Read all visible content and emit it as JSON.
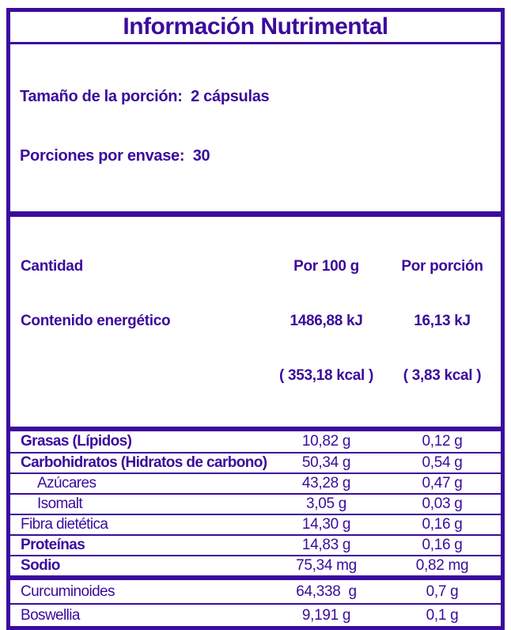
{
  "colors": {
    "purple": "#3B0B9D",
    "background": "#FFFFFF"
  },
  "title": "Información Nutrimental",
  "serving": {
    "size_line": "Tamaño de la porción:  2 cápsulas",
    "per_container_line": "Porciones por envase:  30"
  },
  "header": {
    "amount": "Cantidad",
    "energy": "Contenido energético",
    "per100": [
      "Por 100 g",
      "1486,88 kJ",
      "( 353,18 kcal )"
    ],
    "portion": [
      "Por porción",
      "16,13 kJ",
      "( 3,83 kcal )"
    ]
  },
  "rows": [
    {
      "label": "Grasas (Lípidos)",
      "per100": "10,82 g",
      "portion": "0,12 g"
    },
    {
      "label": "Carbohidratos (Hidratos de carbono)",
      "per100": "50,34 g",
      "portion": "0,54 g"
    },
    {
      "label": "Azúcares",
      "per100": "43,28 g",
      "portion": "0,47 g"
    },
    {
      "label": "Isomalt",
      "per100": "3,05 g",
      "portion": "0,03 g"
    },
    {
      "label": "Fibra dietética",
      "per100": "14,30 g",
      "portion": "0,16 g"
    },
    {
      "label": "Proteínas",
      "per100": "14,83 g",
      "portion": "0,16 g"
    },
    {
      "label": "Sodio",
      "per100": "75,34 mg",
      "portion": "0,82 mg"
    }
  ],
  "supplement_rows": [
    {
      "label": "Curcuminoides",
      "per100": "64,338  g",
      "portion": "0,7 g"
    },
    {
      "label": "Boswellia",
      "per100": "9,191 g",
      "portion": "0,1 g"
    }
  ]
}
